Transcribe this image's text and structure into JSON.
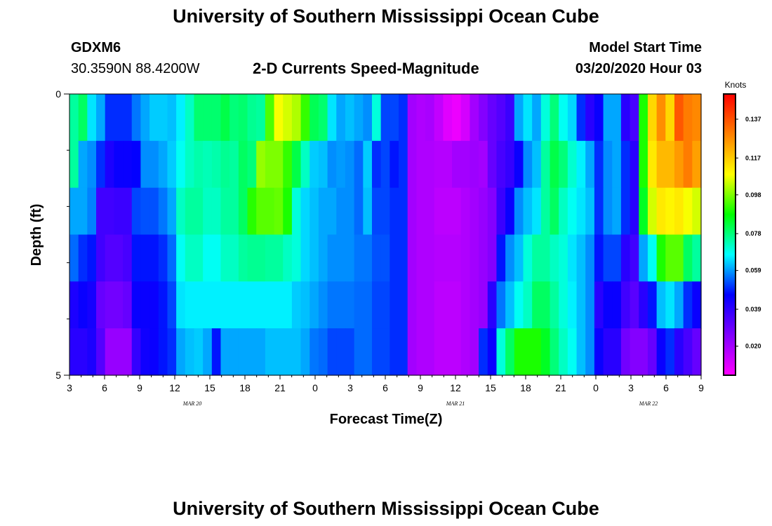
{
  "header": {
    "title": "University of Southern Mississippi Ocean Cube",
    "station_id": "GDXM6",
    "station_coords": "30.3590N 88.4200W",
    "subtitle": "2-D Currents Speed-Magnitude",
    "model_label": "Model Start Time",
    "model_time": "03/20/2020 Hour 03"
  },
  "footer": {
    "title": "University of Southern Mississippi Ocean Cube"
  },
  "chart_data": {
    "type": "heatmap",
    "xlabel": "Forecast Time(Z)",
    "ylabel": "Depth (ft)",
    "y_ticks": [
      "0",
      "5"
    ],
    "ylim": [
      0,
      5
    ],
    "x_tick_labels": [
      "3",
      "6",
      "9",
      "12",
      "15",
      "18",
      "21",
      "0",
      "3",
      "6",
      "9",
      "12",
      "15",
      "18",
      "21",
      "0",
      "3",
      "6",
      "9"
    ],
    "date_labels": [
      {
        "label": "MAR 20",
        "tick_index": 3.5
      },
      {
        "label": "MAR 21",
        "tick_index": 11
      },
      {
        "label": "MAR 22",
        "tick_index": 16.5
      }
    ],
    "x_hours_start": 3,
    "x_hours_end": 57,
    "colorbar": {
      "unit": "Knots",
      "min": 0.005,
      "max": 0.15,
      "labels": [
        "0.137",
        "0.117",
        "0.098",
        "0.078",
        "0.059",
        "0.039",
        "0.020"
      ],
      "colors": [
        "#ff00ff",
        "#8000ff",
        "#0000ff",
        "#00ffff",
        "#00ff00",
        "#ffff00",
        "#ff8000",
        "#ff0000"
      ]
    },
    "depth_levels": 5,
    "rows": [
      [
        0.075,
        0.08,
        0.065,
        0.06,
        0.05,
        0.05,
        0.05,
        0.056,
        0.06,
        0.063,
        0.063,
        0.062,
        0.066,
        0.072,
        0.079,
        0.079,
        0.079,
        0.082,
        0.078,
        0.079,
        0.076,
        0.075,
        0.094,
        0.108,
        0.105,
        0.102,
        0.092,
        0.081,
        0.079,
        0.065,
        0.06,
        0.062,
        0.06,
        0.058,
        0.07,
        0.052,
        0.052,
        0.05,
        0.02,
        0.018,
        0.019,
        0.015,
        0.01,
        0.008,
        0.012,
        0.02,
        0.025,
        0.03,
        0.033,
        0.037,
        0.06,
        0.065,
        0.06,
        0.07,
        0.078,
        0.068,
        0.064,
        0.05,
        0.04,
        0.045,
        0.06,
        0.06,
        0.04,
        0.035,
        0.09,
        0.115,
        0.127,
        0.115,
        0.136,
        0.13,
        0.128
      ],
      [
        0.075,
        0.06,
        0.058,
        0.05,
        0.042,
        0.045,
        0.045,
        0.046,
        0.058,
        0.058,
        0.06,
        0.063,
        0.068,
        0.072,
        0.074,
        0.073,
        0.074,
        0.076,
        0.075,
        0.08,
        0.078,
        0.1,
        0.098,
        0.098,
        0.092,
        0.082,
        0.072,
        0.063,
        0.062,
        0.058,
        0.059,
        0.058,
        0.055,
        0.063,
        0.05,
        0.052,
        0.048,
        0.05,
        0.02,
        0.018,
        0.018,
        0.017,
        0.017,
        0.02,
        0.02,
        0.021,
        0.02,
        0.03,
        0.035,
        0.038,
        0.045,
        0.058,
        0.062,
        0.075,
        0.082,
        0.078,
        0.071,
        0.066,
        0.06,
        0.05,
        0.058,
        0.06,
        0.05,
        0.04,
        0.09,
        0.112,
        0.12,
        0.12,
        0.125,
        0.13,
        0.124
      ],
      [
        0.06,
        0.06,
        0.057,
        0.036,
        0.036,
        0.037,
        0.037,
        0.052,
        0.053,
        0.053,
        0.056,
        0.06,
        0.072,
        0.075,
        0.075,
        0.072,
        0.072,
        0.075,
        0.075,
        0.08,
        0.091,
        0.095,
        0.095,
        0.096,
        0.09,
        0.07,
        0.064,
        0.062,
        0.06,
        0.06,
        0.058,
        0.058,
        0.055,
        0.062,
        0.052,
        0.052,
        0.05,
        0.05,
        0.02,
        0.018,
        0.018,
        0.016,
        0.016,
        0.016,
        0.018,
        0.02,
        0.022,
        0.025,
        0.037,
        0.045,
        0.058,
        0.062,
        0.065,
        0.075,
        0.08,
        0.072,
        0.068,
        0.065,
        0.062,
        0.05,
        0.058,
        0.06,
        0.05,
        0.04,
        0.085,
        0.105,
        0.112,
        0.11,
        0.112,
        0.108,
        0.105
      ],
      [
        0.055,
        0.05,
        0.048,
        0.036,
        0.033,
        0.033,
        0.035,
        0.048,
        0.048,
        0.048,
        0.05,
        0.055,
        0.068,
        0.072,
        0.072,
        0.068,
        0.068,
        0.072,
        0.072,
        0.075,
        0.076,
        0.076,
        0.075,
        0.075,
        0.072,
        0.07,
        0.064,
        0.062,
        0.06,
        0.058,
        0.058,
        0.058,
        0.056,
        0.056,
        0.053,
        0.053,
        0.05,
        0.05,
        0.02,
        0.018,
        0.018,
        0.017,
        0.017,
        0.017,
        0.018,
        0.02,
        0.022,
        0.025,
        0.048,
        0.058,
        0.062,
        0.07,
        0.075,
        0.075,
        0.072,
        0.07,
        0.065,
        0.062,
        0.058,
        0.048,
        0.052,
        0.052,
        0.04,
        0.036,
        0.06,
        0.068,
        0.09,
        0.095,
        0.095,
        0.08,
        0.075
      ],
      [
        0.042,
        0.045,
        0.043,
        0.03,
        0.028,
        0.028,
        0.03,
        0.045,
        0.045,
        0.045,
        0.048,
        0.052,
        0.065,
        0.066,
        0.066,
        0.066,
        0.066,
        0.066,
        0.066,
        0.066,
        0.066,
        0.066,
        0.066,
        0.066,
        0.066,
        0.063,
        0.062,
        0.06,
        0.058,
        0.056,
        0.056,
        0.056,
        0.055,
        0.055,
        0.052,
        0.052,
        0.05,
        0.05,
        0.02,
        0.018,
        0.018,
        0.016,
        0.016,
        0.016,
        0.018,
        0.02,
        0.022,
        0.04,
        0.056,
        0.062,
        0.068,
        0.072,
        0.08,
        0.08,
        0.075,
        0.07,
        0.066,
        0.062,
        0.058,
        0.04,
        0.045,
        0.045,
        0.036,
        0.032,
        0.04,
        0.048,
        0.062,
        0.065,
        0.06,
        0.05,
        0.045
      ],
      [
        0.04,
        0.04,
        0.042,
        0.033,
        0.022,
        0.022,
        0.022,
        0.038,
        0.044,
        0.045,
        0.048,
        0.05,
        0.06,
        0.062,
        0.063,
        0.06,
        0.048,
        0.06,
        0.06,
        0.06,
        0.06,
        0.06,
        0.062,
        0.062,
        0.062,
        0.062,
        0.06,
        0.056,
        0.055,
        0.052,
        0.052,
        0.052,
        0.055,
        0.055,
        0.052,
        0.052,
        0.05,
        0.05,
        0.02,
        0.018,
        0.018,
        0.016,
        0.016,
        0.016,
        0.018,
        0.02,
        0.05,
        0.045,
        0.07,
        0.08,
        0.09,
        0.09,
        0.09,
        0.085,
        0.078,
        0.072,
        0.068,
        0.062,
        0.058,
        0.045,
        0.04,
        0.04,
        0.028,
        0.025,
        0.025,
        0.03,
        0.045,
        0.05,
        0.04,
        0.035,
        0.03
      ]
    ]
  }
}
